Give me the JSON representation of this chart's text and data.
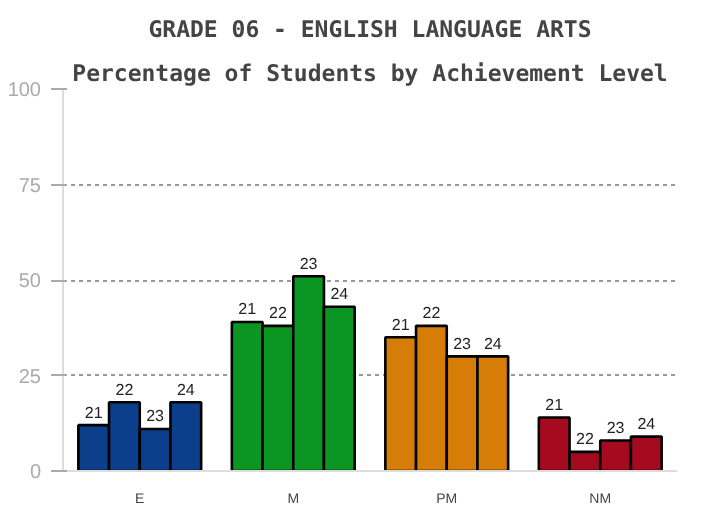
{
  "chart_data": {
    "type": "bar",
    "title": "GRADE 06 - ENGLISH LANGUAGE ARTS",
    "subtitle": "Percentage of Students by Achievement Level",
    "categories": [
      "E",
      "M",
      "PM",
      "NM"
    ],
    "series": [
      {
        "name": "21",
        "colors": [
          "#0b3f8c",
          "#0b9623",
          "#d67d07",
          "#a50a1f"
        ],
        "values": [
          12,
          39,
          35,
          14
        ]
      },
      {
        "name": "22",
        "colors": [
          "#0b3f8c",
          "#0b9623",
          "#d67d07",
          "#a50a1f"
        ],
        "values": [
          18,
          38,
          38,
          5
        ]
      },
      {
        "name": "23",
        "colors": [
          "#0b3f8c",
          "#0b9623",
          "#d67d07",
          "#a50a1f"
        ],
        "values": [
          11,
          51,
          30,
          8
        ]
      },
      {
        "name": "24",
        "colors": [
          "#0b3f8c",
          "#0b9623",
          "#d67d07",
          "#a50a1f"
        ],
        "values": [
          18,
          43,
          30,
          9
        ]
      }
    ],
    "ylim": [
      0,
      100
    ],
    "yticks": [
      0,
      25,
      50,
      75,
      100
    ],
    "grid": "y"
  }
}
